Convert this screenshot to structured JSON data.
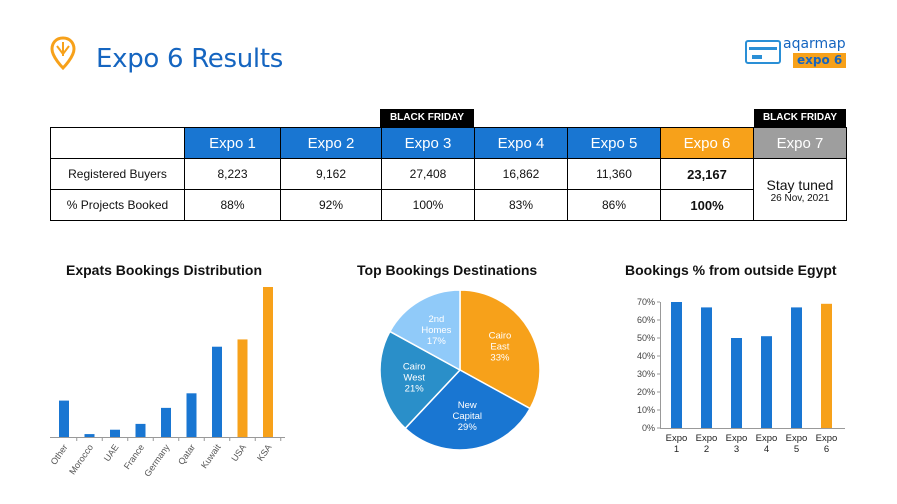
{
  "header": {
    "title": "Expo 6 Results",
    "logo_top": "aqarmap",
    "logo_bottom": "expo 6"
  },
  "colors": {
    "blue": "#1976d2",
    "orange": "#f7a11a",
    "gray": "#9e9e9e",
    "lightblue": "#64b5f6"
  },
  "table": {
    "badge": "BLACK FRIDAY",
    "columns": [
      "Expo 1",
      "Expo 2",
      "Expo 3",
      "Expo 4",
      "Expo 5",
      "Expo 6",
      "Expo 7"
    ],
    "rows": [
      {
        "label": "Registered Buyers",
        "values": [
          "8,223",
          "9,162",
          "27,408",
          "16,862",
          "11,360",
          "23,167"
        ]
      },
      {
        "label": "% Projects Booked",
        "values": [
          "88%",
          "92%",
          "100%",
          "83%",
          "86%",
          "100%"
        ]
      }
    ],
    "expo7_text": "Stay tuned",
    "expo7_date": "26 Nov, 2021"
  },
  "chart_data": [
    {
      "type": "bar",
      "title": "Expats Bookings Distribution",
      "categories": [
        "Other",
        "Morocco",
        "UAE",
        "France",
        "Germany",
        "Qatar",
        "Kuwait",
        "USA",
        "KSA"
      ],
      "values": [
        25,
        2,
        5,
        9,
        20,
        30,
        62,
        67,
        103
      ],
      "highlight": [
        "USA",
        "KSA"
      ]
    },
    {
      "type": "pie",
      "title": "Top Bookings Destinations",
      "slices": [
        {
          "name": "Cairo East",
          "value": 33,
          "label": "33%"
        },
        {
          "name": "New Capital",
          "value": 29,
          "label": "29%"
        },
        {
          "name": "Cairo West",
          "value": 21,
          "label": "21%"
        },
        {
          "name": "2nd Homes",
          "value": 17,
          "label": "17%"
        }
      ]
    },
    {
      "type": "bar",
      "title": "Bookings % from outside Egypt",
      "categories": [
        "Expo 1",
        "Expo 2",
        "Expo 3",
        "Expo 4",
        "Expo 5",
        "Expo 6"
      ],
      "values": [
        70,
        67,
        50,
        51,
        67,
        69
      ],
      "ylim": [
        0,
        70
      ],
      "yticks": [
        "0%",
        "10%",
        "20%",
        "30%",
        "40%",
        "50%",
        "60%",
        "70%"
      ],
      "highlight": [
        "Expo 6"
      ]
    }
  ]
}
